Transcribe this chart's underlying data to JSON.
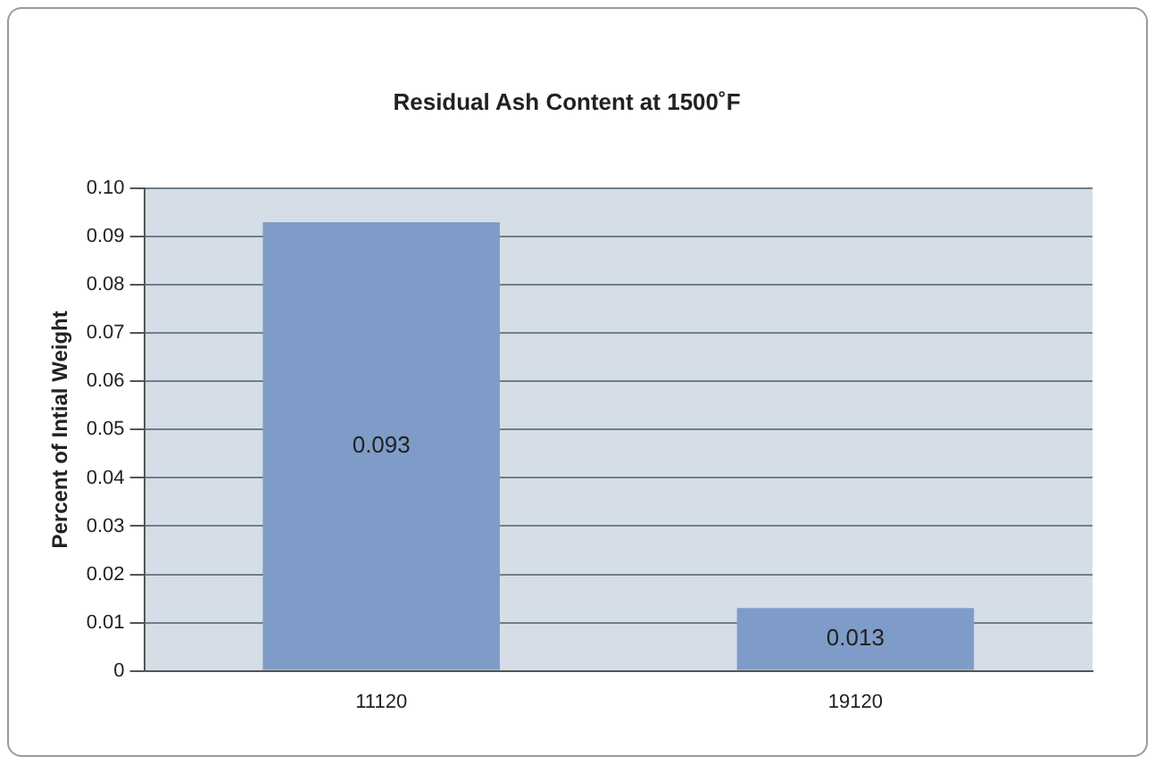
{
  "chart_data": {
    "type": "bar",
    "title": "Residual Ash Content at 1500˚F",
    "ylabel": "Percent of Intial Weight",
    "categories": [
      "11120",
      "19120"
    ],
    "values": [
      0.093,
      0.013
    ],
    "color": "#7f9cc8",
    "ylim": [
      0,
      0.1
    ],
    "yticks": [
      0,
      0.01,
      0.02,
      0.03,
      0.04,
      0.05,
      0.06,
      0.07,
      0.08,
      0.09,
      {
        "value": 0.1,
        "label": "0.10"
      }
    ],
    "grid": "y",
    "data_labels": true
  }
}
